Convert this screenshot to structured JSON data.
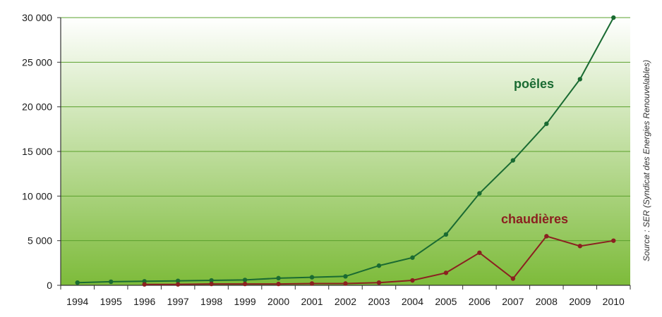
{
  "chart_data": {
    "type": "line",
    "x": [
      "1994",
      "1995",
      "1996",
      "1997",
      "1998",
      "1999",
      "2000",
      "2001",
      "2002",
      "2003",
      "2004",
      "2005",
      "2006",
      "2007",
      "2008",
      "2009",
      "2010"
    ],
    "series": [
      {
        "name": "poêles",
        "color": "#1a6b32",
        "values": [
          300,
          400,
          450,
          500,
          550,
          600,
          800,
          900,
          1000,
          2200,
          3100,
          5700,
          10300,
          14000,
          18100,
          23100,
          30000
        ]
      },
      {
        "name": "chaudières",
        "color": "#8b2020",
        "values": [
          null,
          null,
          100,
          100,
          150,
          150,
          150,
          200,
          200,
          300,
          550,
          1400,
          3650,
          750,
          5500,
          4400,
          5000
        ]
      }
    ],
    "ylim": [
      0,
      30000
    ],
    "yticks": [
      0,
      5000,
      10000,
      15000,
      20000,
      25000,
      30000
    ],
    "ytick_labels": [
      "0",
      "5 000",
      "10 000",
      "15 000",
      "20 000",
      "25 000",
      "30 000"
    ],
    "grid": true,
    "background": "gradient white to green",
    "source": "Source : SER (Syndicat des Energies Renouvelables)"
  }
}
